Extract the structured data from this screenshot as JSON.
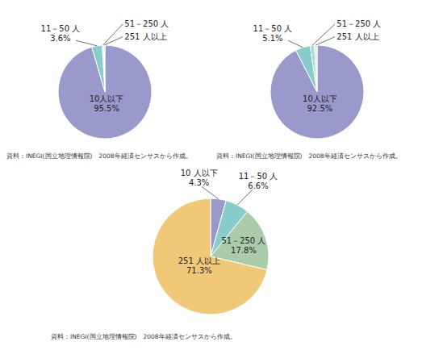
{
  "chart_data": [
    {
      "type": "pie",
      "categories": [
        "10人以下",
        "11－50 人",
        "51－250 人",
        "251 人以上"
      ],
      "values": [
        95.5,
        3.6,
        0.5,
        0.4
      ],
      "value_labels": [
        "95.5%",
        "3.6%",
        null,
        null
      ],
      "colors": [
        "#9999cc",
        "#88cccc",
        "#aaddcc",
        "#ddeedd"
      ],
      "annotations": [
        "資料：INEGI(国立地理情報院)　2008年経済センサスから作成。"
      ]
    },
    {
      "type": "pie",
      "categories": [
        "10人以下",
        "11－50 人",
        "51－250 人",
        "251 人以上"
      ],
      "values": [
        92.5,
        5.1,
        1.5,
        0.9
      ],
      "value_labels": [
        "92.5%",
        "5.1%",
        null,
        null
      ],
      "colors": [
        "#9999cc",
        "#88cccc",
        "#aaddcc",
        "#ddeedd"
      ],
      "annotations": [
        "資料：INEGI(国立地理情報院)　2008年経済センサスから作成。"
      ]
    },
    {
      "type": "pie",
      "categories": [
        "10 人以下",
        "11－50 人",
        "51－250 人",
        "251 人以上"
      ],
      "values": [
        4.3,
        6.6,
        17.8,
        71.3
      ],
      "value_labels": [
        "4.3%",
        "6.6%",
        "17.8%",
        "71.3%"
      ],
      "colors": [
        "#9999cc",
        "#88cccc",
        "#aaccaa",
        "#f0c878"
      ],
      "annotations": [
        "資料：INEGI(国立地理情報院)　2008年経済センサスから作成。"
      ]
    }
  ]
}
